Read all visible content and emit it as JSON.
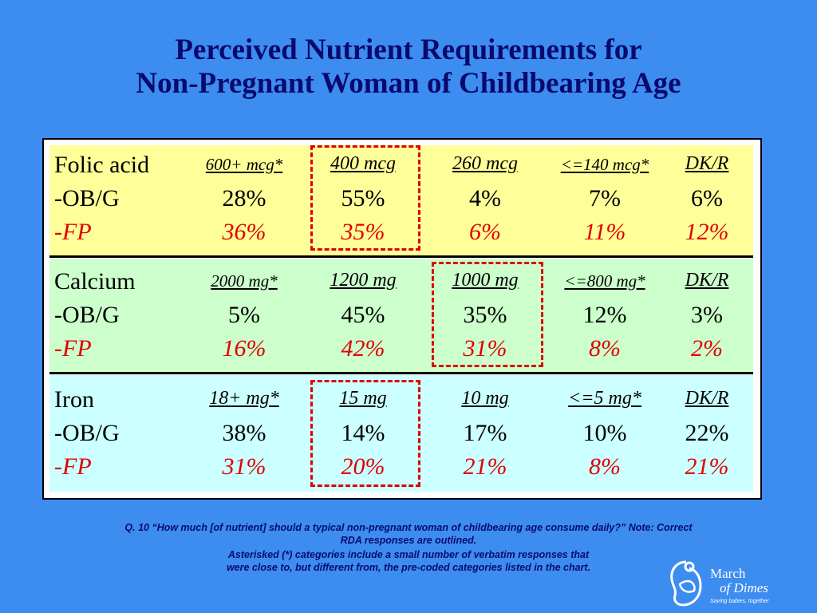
{
  "title": {
    "line1": "Perceived Nutrient Requirements for",
    "line2": "Non-Pregnant Woman of Childbearing Age"
  },
  "row_labels": {
    "ob": "-OB/G",
    "fp": "-FP"
  },
  "sections": [
    {
      "nutrient": "Folic acid",
      "headers": [
        "600+ mcg*",
        "400 mcg",
        "260 mcg",
        "<=140 mcg*",
        "DK/R"
      ],
      "ob": [
        "28%",
        "55%",
        "4%",
        "7%",
        "6%"
      ],
      "fp": [
        "36%",
        "35%",
        "6%",
        "11%",
        "12%"
      ]
    },
    {
      "nutrient": "Calcium",
      "headers": [
        "2000 mg*",
        "1200 mg",
        "1000 mg",
        "<=800 mg*",
        "DK/R"
      ],
      "ob": [
        "5%",
        "45%",
        "35%",
        "12%",
        "3%"
      ],
      "fp": [
        "16%",
        "42%",
        "31%",
        "8%",
        "2%"
      ]
    },
    {
      "nutrient": "Iron",
      "headers": [
        "18+ mg*",
        "15 mg",
        "10 mg",
        "<=5 mg*",
        "DK/R"
      ],
      "ob": [
        "38%",
        "14%",
        "17%",
        "10%",
        "22%"
      ],
      "fp": [
        "31%",
        "20%",
        "21%",
        "8%",
        "21%"
      ]
    }
  ],
  "notes": {
    "line1": "Q. 10  “How much [of nutrient] should a typical non-pregnant woman of childbearing age consume daily?”  Note: Correct",
    "line2": "RDA responses are outlined.",
    "line3": "Asterisked (*) categories include a small number of verbatim responses that",
    "line4": "were close to, but different from, the pre-coded categories listed in the chart."
  },
  "logo": {
    "word1": "March",
    "word2": "of Dimes",
    "tagline": "Saving babies, together"
  },
  "colors": {
    "background": "#3d8cf0",
    "title": "#0a0a6e",
    "folic_band": "#ffff99",
    "calcium_band": "#ccffcc",
    "iron_band": "#ccffff",
    "fp_text": "#e00000",
    "outline": "#e00000"
  }
}
